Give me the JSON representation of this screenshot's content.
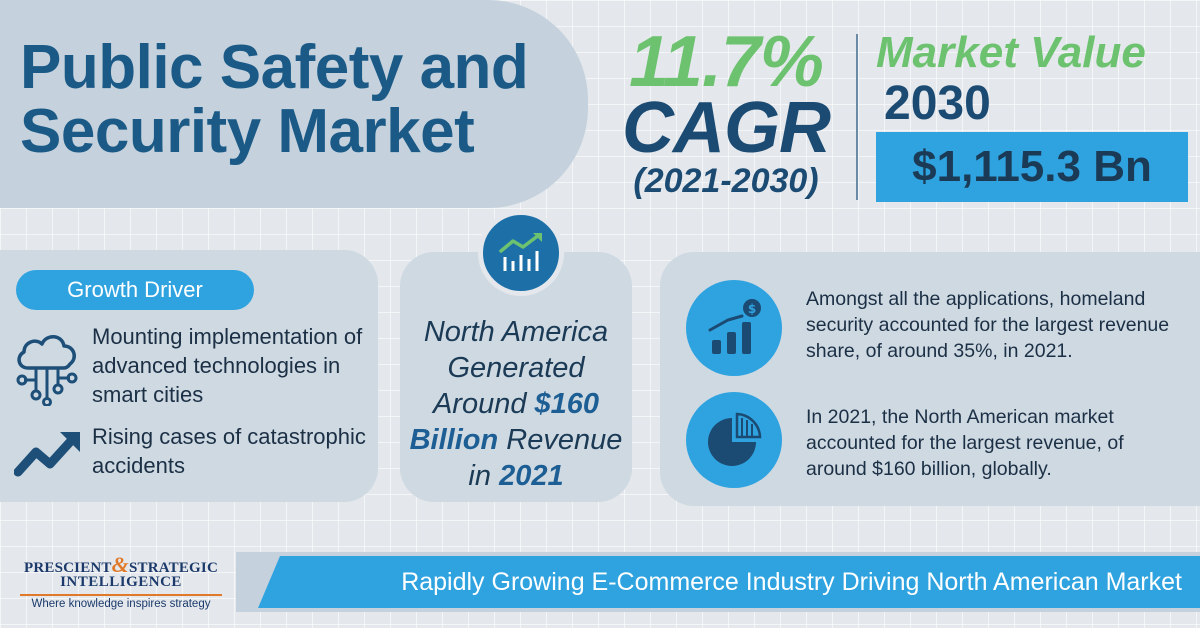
{
  "header": {
    "title": "Public Safety and\nSecurity Market",
    "cagr_value": "11.7%",
    "cagr_label": "CAGR",
    "cagr_period": "(2021-2030)",
    "market_value_label": "Market Value",
    "market_value_year": "2030",
    "market_value_amount": "$1,115.3 Bn"
  },
  "growth": {
    "badge": "Growth Driver",
    "drivers": [
      {
        "icon": "cloud-network-icon",
        "text": "Mounting implementation of advanced technologies in smart cities"
      },
      {
        "icon": "trend-up-arrow-icon",
        "text": "Rising cases of catastrophic accidents"
      }
    ]
  },
  "highlight": {
    "icon": "growth-chart-icon",
    "line1": "North America Generated Around ",
    "amount": "$160 Billion",
    "line2": " Revenue in ",
    "year": "2021"
  },
  "insights": [
    {
      "icon": "revenue-bars-icon",
      "text": "Amongst all the applications, homeland security accounted for the largest revenue share, of around 35%, in 2021."
    },
    {
      "icon": "pie-chart-icon",
      "text": "In 2021, the North American market accounted for the largest revenue, of around $160 billion, globally."
    }
  ],
  "footer": {
    "logo_line1_a": "PRESCIENT",
    "logo_amp": "&",
    "logo_line1_b": "STRATEGIC",
    "logo_line2": "INTELLIGENCE",
    "logo_tagline": "Where knowledge inspires strategy",
    "banner": "Rapidly Growing E-Commerce Industry Driving North American Market"
  },
  "colors": {
    "accent_blue": "#2fa3e0",
    "dark_blue": "#1b4a72",
    "green": "#6cc26f",
    "panel": "#cfd9e2"
  }
}
